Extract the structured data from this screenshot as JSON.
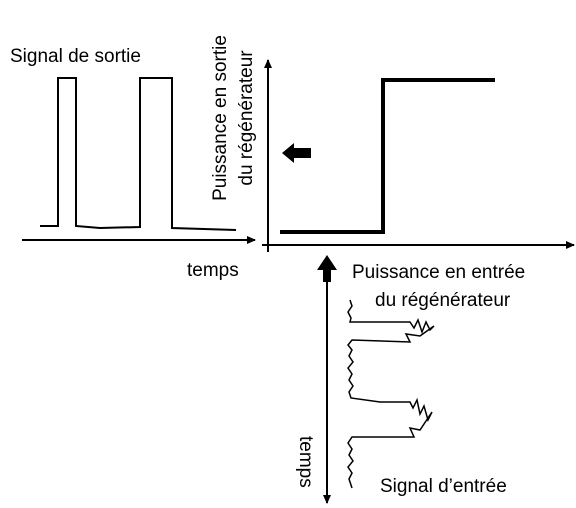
{
  "output_signal": {
    "label": "Signal de sortie",
    "axis_label": "temps"
  },
  "vertical_axis": {
    "label_line1": "Puissance en sortie",
    "label_line2": "du régénérateur"
  },
  "horizontal_axis": {
    "label_line1": "Puissance en entrée",
    "label_line2": "du régénérateur"
  },
  "input_signal": {
    "label": "Signal d’entrée",
    "axis_label": "temps"
  }
}
